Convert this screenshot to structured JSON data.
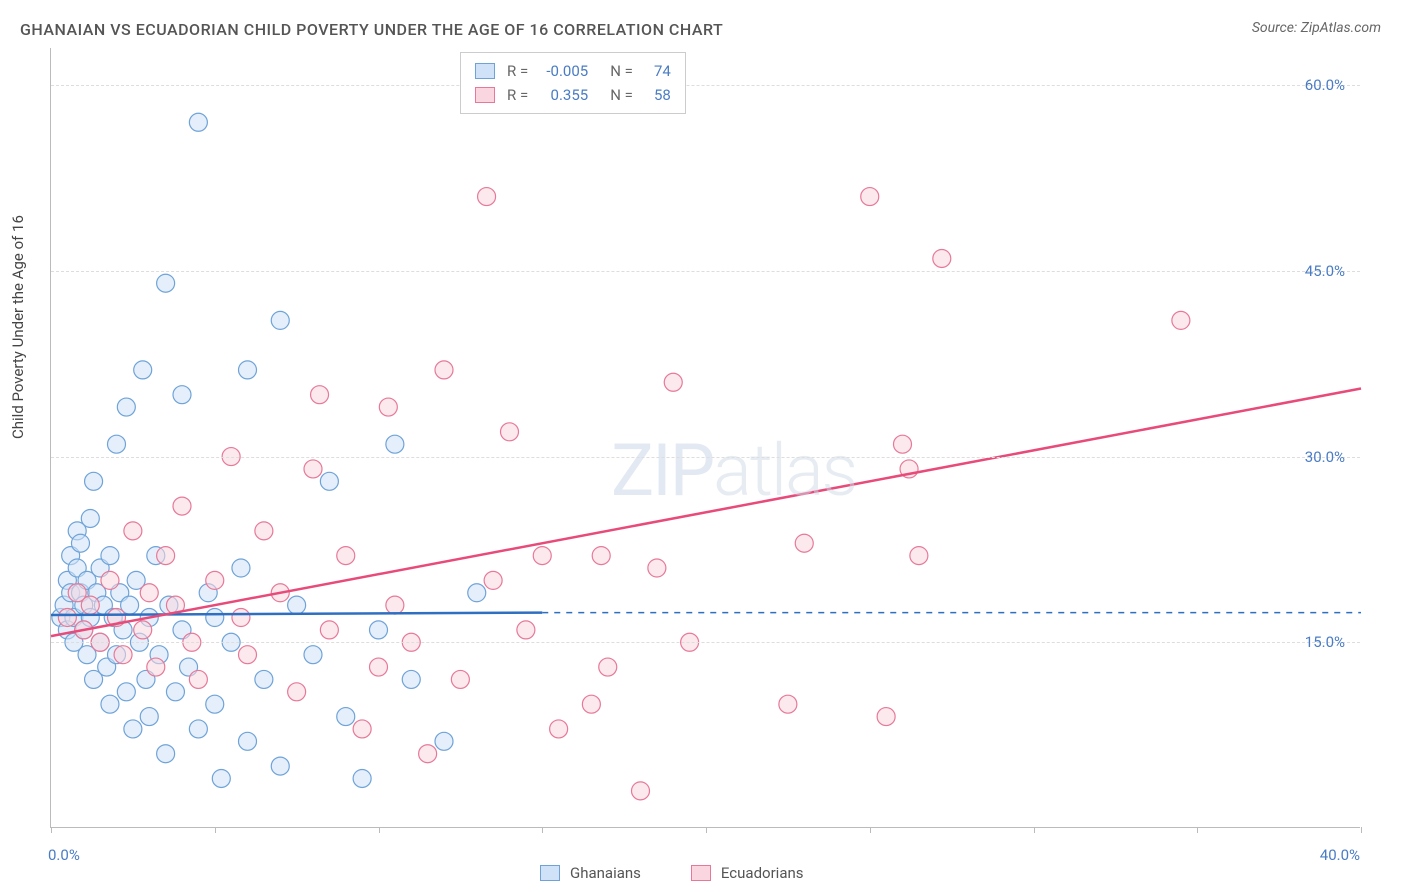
{
  "title": "GHANAIAN VS ECUADORIAN CHILD POVERTY UNDER THE AGE OF 16 CORRELATION CHART",
  "source_label": "Source: ZipAtlas.com",
  "ylabel": "Child Poverty Under the Age of 16",
  "watermark_bold": "ZIP",
  "watermark_thin": "atlas",
  "chart": {
    "type": "scatter",
    "background_color": "#ffffff",
    "grid_color": "#dddddd",
    "axis_color": "#bbbbbb",
    "tick_label_color": "#4a7cc4",
    "text_color": "#444444",
    "title_fontsize": 16,
    "label_fontsize": 15,
    "tick_fontsize": 15,
    "marker_radius": 9,
    "marker_stroke_width": 1.2,
    "line_width": 2.5,
    "xlim": [
      0,
      40
    ],
    "ylim": [
      0,
      63
    ],
    "xtick_positions": [
      0,
      5,
      10,
      15,
      20,
      25,
      30,
      35,
      40
    ],
    "xtick_labels": {
      "0": "0.0%",
      "40": "40.0%"
    },
    "ytick_positions": [
      15,
      30,
      45,
      60
    ],
    "ytick_labels": {
      "15": "15.0%",
      "30": "30.0%",
      "45": "45.0%",
      "60": "60.0%"
    },
    "series": [
      {
        "name": "Ghanaians",
        "r_value": "-0.005",
        "n_value": "74",
        "marker_fill": "#cfe2f7",
        "marker_stroke": "#6fa3d8",
        "line_color": "#2e6fc1",
        "trend": {
          "x1": 0,
          "y1": 17.2,
          "x2": 15,
          "y2": 17.4,
          "dash_x2": 40,
          "dash_y2": 17.4
        },
        "points": [
          [
            0.3,
            17
          ],
          [
            0.4,
            18
          ],
          [
            0.5,
            16
          ],
          [
            0.5,
            20
          ],
          [
            0.6,
            22
          ],
          [
            0.6,
            19
          ],
          [
            0.7,
            17
          ],
          [
            0.7,
            15
          ],
          [
            0.8,
            21
          ],
          [
            0.8,
            24
          ],
          [
            0.9,
            23
          ],
          [
            0.9,
            19
          ],
          [
            1.0,
            18
          ],
          [
            1.0,
            16
          ],
          [
            1.1,
            20
          ],
          [
            1.1,
            14
          ],
          [
            1.2,
            25
          ],
          [
            1.2,
            17
          ],
          [
            1.3,
            28
          ],
          [
            1.3,
            12
          ],
          [
            1.4,
            19
          ],
          [
            1.5,
            21
          ],
          [
            1.5,
            15
          ],
          [
            1.6,
            18
          ],
          [
            1.7,
            13
          ],
          [
            1.8,
            22
          ],
          [
            1.8,
            10
          ],
          [
            1.9,
            17
          ],
          [
            2.0,
            31
          ],
          [
            2.0,
            14
          ],
          [
            2.1,
            19
          ],
          [
            2.2,
            16
          ],
          [
            2.3,
            34
          ],
          [
            2.3,
            11
          ],
          [
            2.4,
            18
          ],
          [
            2.5,
            8
          ],
          [
            2.6,
            20
          ],
          [
            2.7,
            15
          ],
          [
            2.8,
            37
          ],
          [
            2.9,
            12
          ],
          [
            3.0,
            17
          ],
          [
            3.0,
            9
          ],
          [
            3.2,
            22
          ],
          [
            3.3,
            14
          ],
          [
            3.5,
            44
          ],
          [
            3.5,
            6
          ],
          [
            3.6,
            18
          ],
          [
            3.8,
            11
          ],
          [
            4.0,
            16
          ],
          [
            4.0,
            35
          ],
          [
            4.2,
            13
          ],
          [
            4.5,
            57
          ],
          [
            4.5,
            8
          ],
          [
            4.8,
            19
          ],
          [
            5.0,
            10
          ],
          [
            5.0,
            17
          ],
          [
            5.2,
            4
          ],
          [
            5.5,
            15
          ],
          [
            5.8,
            21
          ],
          [
            6.0,
            7
          ],
          [
            6.0,
            37
          ],
          [
            6.5,
            12
          ],
          [
            7.0,
            41
          ],
          [
            7.0,
            5
          ],
          [
            7.5,
            18
          ],
          [
            8.0,
            14
          ],
          [
            8.5,
            28
          ],
          [
            9.0,
            9
          ],
          [
            9.5,
            4
          ],
          [
            10.0,
            16
          ],
          [
            10.5,
            31
          ],
          [
            11.0,
            12
          ],
          [
            12.0,
            7
          ],
          [
            13.0,
            19
          ]
        ]
      },
      {
        "name": "Ecuadorians",
        "r_value": "0.355",
        "n_value": "58",
        "marker_fill": "#fad7e0",
        "marker_stroke": "#e77998",
        "line_color": "#e84a7a",
        "trend": {
          "x1": 0,
          "y1": 15.5,
          "x2": 40,
          "y2": 35.5
        },
        "points": [
          [
            0.5,
            17
          ],
          [
            0.8,
            19
          ],
          [
            1.0,
            16
          ],
          [
            1.2,
            18
          ],
          [
            1.5,
            15
          ],
          [
            1.8,
            20
          ],
          [
            2.0,
            17
          ],
          [
            2.2,
            14
          ],
          [
            2.5,
            24
          ],
          [
            2.8,
            16
          ],
          [
            3.0,
            19
          ],
          [
            3.2,
            13
          ],
          [
            3.5,
            22
          ],
          [
            3.8,
            18
          ],
          [
            4.0,
            26
          ],
          [
            4.3,
            15
          ],
          [
            4.5,
            12
          ],
          [
            5.0,
            20
          ],
          [
            5.5,
            30
          ],
          [
            5.8,
            17
          ],
          [
            6.0,
            14
          ],
          [
            6.5,
            24
          ],
          [
            7.0,
            19
          ],
          [
            7.5,
            11
          ],
          [
            8.0,
            29
          ],
          [
            8.2,
            35
          ],
          [
            8.5,
            16
          ],
          [
            9.0,
            22
          ],
          [
            9.5,
            8
          ],
          [
            10.0,
            13
          ],
          [
            10.3,
            34
          ],
          [
            10.5,
            18
          ],
          [
            11.0,
            15
          ],
          [
            11.5,
            6
          ],
          [
            12.0,
            37
          ],
          [
            12.5,
            12
          ],
          [
            13.3,
            51
          ],
          [
            13.5,
            20
          ],
          [
            14.0,
            32
          ],
          [
            14.5,
            16
          ],
          [
            15.0,
            22
          ],
          [
            15.5,
            8
          ],
          [
            16.5,
            10
          ],
          [
            16.8,
            22
          ],
          [
            17.0,
            13
          ],
          [
            18.0,
            3
          ],
          [
            18.5,
            21
          ],
          [
            19.0,
            36
          ],
          [
            19.5,
            15
          ],
          [
            22.5,
            10
          ],
          [
            23.0,
            23
          ],
          [
            25.0,
            51
          ],
          [
            25.5,
            9
          ],
          [
            26.0,
            31
          ],
          [
            26.2,
            29
          ],
          [
            26.5,
            22
          ],
          [
            27.2,
            46
          ],
          [
            34.5,
            41
          ]
        ]
      }
    ]
  },
  "legend_bottom": [
    {
      "label": "Ghanaians",
      "fill": "#cfe2f7",
      "stroke": "#6fa3d8"
    },
    {
      "label": "Ecuadorians",
      "fill": "#fad7e0",
      "stroke": "#e77998"
    }
  ],
  "legend_stats_labels": {
    "r": "R =",
    "n": "N ="
  }
}
